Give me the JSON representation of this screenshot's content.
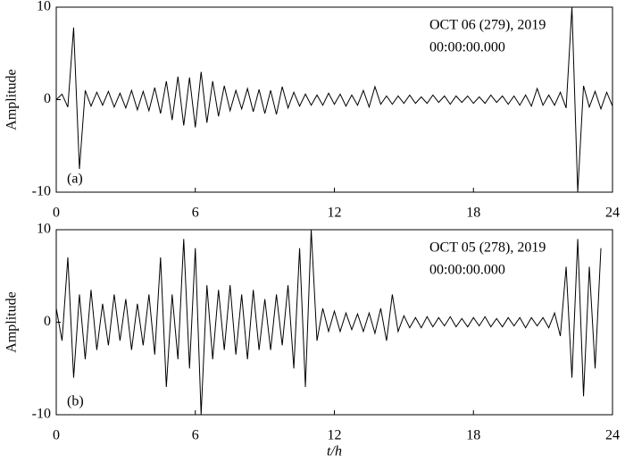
{
  "chart_data": [
    {
      "type": "line",
      "ylabel": "Amplitude",
      "annotations": {
        "date": "OCT 06 (279), 2019",
        "time": "00:00:00.000",
        "panel_label": "(a)"
      },
      "xlim": [
        0,
        24
      ],
      "xticks": [
        0,
        6,
        12,
        18,
        24
      ],
      "ylim": [
        -10,
        10
      ],
      "yticks": [
        -10,
        0,
        10
      ],
      "x": [
        0,
        0.25,
        0.5,
        0.75,
        1,
        1.25,
        1.5,
        1.75,
        2,
        2.25,
        2.5,
        2.75,
        3,
        3.25,
        3.5,
        3.75,
        4,
        4.25,
        4.5,
        4.75,
        5,
        5.25,
        5.5,
        5.75,
        6,
        6.25,
        6.5,
        6.75,
        7,
        7.25,
        7.5,
        7.75,
        8,
        8.25,
        8.5,
        8.75,
        9,
        9.25,
        9.5,
        9.75,
        10,
        10.25,
        10.5,
        10.75,
        11,
        11.25,
        11.5,
        11.75,
        12,
        12.25,
        12.5,
        12.75,
        13,
        13.25,
        13.5,
        13.75,
        14,
        14.25,
        14.5,
        14.75,
        15,
        15.25,
        15.5,
        15.75,
        16,
        16.25,
        16.5,
        16.75,
        17,
        17.25,
        17.5,
        17.75,
        18,
        18.25,
        18.5,
        18.75,
        19,
        19.25,
        19.5,
        19.75,
        20,
        20.25,
        20.5,
        20.75,
        21,
        21.25,
        21.5,
        21.75,
        22,
        22.25,
        22.5,
        22.75,
        23,
        23.25,
        23.5,
        23.75,
        24
      ],
      "series": [
        {
          "color": "#000000",
          "values": [
            0,
            0.6,
            -0.8,
            7.8,
            -7.5,
            1,
            -0.7,
            0.8,
            -0.6,
            0.9,
            -0.8,
            0.7,
            -0.9,
            1.0,
            -1.1,
            0.9,
            -1.2,
            1.3,
            -1.5,
            2.0,
            -2.2,
            2.5,
            -2.8,
            2.4,
            -3.0,
            3.0,
            -2.5,
            2.0,
            -1.8,
            1.5,
            -1.2,
            1.0,
            -1.0,
            1.2,
            -1.3,
            1.1,
            -1.5,
            1.0,
            -1.6,
            1.4,
            -0.9,
            0.8,
            -0.7,
            0.6,
            -0.6,
            0.5,
            -0.6,
            0.7,
            -0.5,
            0.6,
            -0.7,
            0.5,
            -0.6,
            1.0,
            -0.8,
            1.4,
            -0.5,
            0.4,
            -0.5,
            0.4,
            -0.4,
            0.5,
            -0.4,
            0.3,
            -0.4,
            0.5,
            -0.3,
            0.4,
            -0.5,
            0.4,
            -0.3,
            0.4,
            -0.4,
            0.3,
            -0.4,
            0.5,
            -0.3,
            0.4,
            -0.5,
            0.4,
            -0.6,
            0.5,
            -0.7,
            1.2,
            -0.6,
            0.5,
            -0.6,
            0.8,
            -0.9,
            10,
            -10,
            1.5,
            -0.8,
            0.9,
            -1.0,
            0.8,
            -0.7
          ]
        }
      ]
    },
    {
      "type": "line",
      "ylabel": "Amplitude",
      "xlabel": "t/h",
      "annotations": {
        "date": "OCT 05 (278), 2019",
        "time": "00:00:00.000",
        "panel_label": "(b)"
      },
      "xlim": [
        0,
        24
      ],
      "xticks": [
        0,
        6,
        12,
        18,
        24
      ],
      "ylim": [
        -10,
        10
      ],
      "yticks": [
        -10,
        0,
        10
      ],
      "x": [
        0,
        0.25,
        0.5,
        0.75,
        1,
        1.25,
        1.5,
        1.75,
        2,
        2.25,
        2.5,
        2.75,
        3,
        3.25,
        3.5,
        3.75,
        4,
        4.25,
        4.5,
        4.75,
        5,
        5.25,
        5.5,
        5.75,
        6,
        6.25,
        6.5,
        6.75,
        7,
        7.25,
        7.5,
        7.75,
        8,
        8.25,
        8.5,
        8.75,
        9,
        9.25,
        9.5,
        9.75,
        10,
        10.25,
        10.5,
        10.75,
        11,
        11.25,
        11.5,
        11.75,
        12,
        12.25,
        12.5,
        12.75,
        13,
        13.25,
        13.5,
        13.75,
        14,
        14.25,
        14.5,
        14.75,
        15,
        15.25,
        15.5,
        15.75,
        16,
        16.25,
        16.5,
        16.75,
        17,
        17.25,
        17.5,
        17.75,
        18,
        18.25,
        18.5,
        18.75,
        19,
        19.25,
        19.5,
        19.75,
        20,
        20.25,
        20.5,
        20.75,
        21,
        21.25,
        21.5,
        21.75,
        22,
        22.25,
        22.5,
        22.75,
        23,
        23.25,
        23.5,
        23.75,
        24
      ],
      "series": [
        {
          "color": "#000000",
          "values": [
            1.5,
            -2,
            7,
            -6,
            3,
            -4,
            3.5,
            -3,
            2,
            -2.5,
            3,
            -2,
            2.5,
            -3,
            2,
            -2.5,
            3,
            -3.5,
            7,
            -7,
            3,
            -4,
            9,
            -5,
            8,
            -10,
            4,
            -4,
            3.5,
            -3,
            4,
            -3.5,
            3,
            -4,
            3.5,
            -3,
            2.5,
            -3,
            3,
            -2.5,
            4,
            -5,
            8,
            -7,
            10,
            -2,
            1.5,
            -1,
            1.2,
            -1,
            1,
            -0.8,
            0.9,
            -1,
            1,
            -1.2,
            1.5,
            -2,
            3,
            -1,
            0.7,
            -0.6,
            0.5,
            -0.6,
            0.6,
            -0.5,
            0.5,
            -0.4,
            0.6,
            -0.5,
            0.4,
            -0.5,
            0.5,
            -0.4,
            0.6,
            -0.5,
            0.4,
            -0.5,
            0.5,
            -0.4,
            0.5,
            -0.6,
            0.5,
            -0.4,
            0.5,
            -0.6,
            1,
            -1.5,
            6,
            -6,
            9,
            -8,
            6,
            -5,
            8,
            null,
            null
          ]
        }
      ]
    }
  ]
}
